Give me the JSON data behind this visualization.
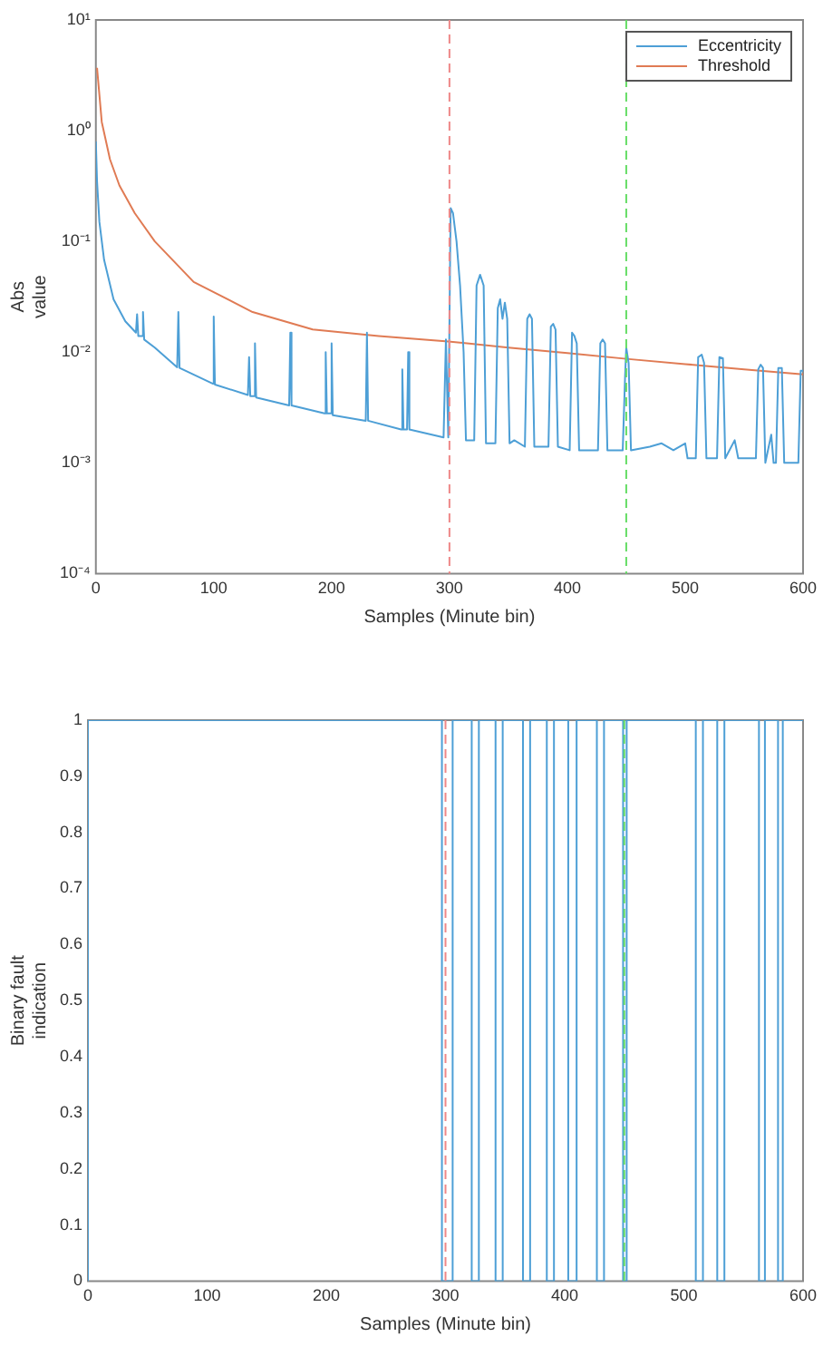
{
  "chart_data": [
    {
      "type": "line",
      "xlabel": "Samples (Minute bin)",
      "ylabel": "Abs value",
      "log": "y",
      "grid": false,
      "legend": "top right",
      "marker": "none",
      "xlim": [
        0,
        600
      ],
      "xticks": [
        0,
        100,
        200,
        300,
        400,
        500,
        600
      ],
      "ylim": [
        0.0001,
        10
      ],
      "yticks": [
        {
          "value": 0.0001,
          "label": "10⁻⁴"
        },
        {
          "value": 0.001,
          "label": "10⁻³"
        },
        {
          "value": 0.01,
          "label": "10⁻²"
        },
        {
          "value": 0.1,
          "label": "10⁻¹"
        },
        {
          "value": 1,
          "label": "10⁰"
        },
        {
          "value": 10,
          "label": "10¹"
        }
      ],
      "series": [
        {
          "name": "Eccentricity",
          "color": "#4d9fd6",
          "x": [
            0,
            1,
            3,
            7,
            15,
            25,
            34,
            35,
            36,
            39,
            40,
            41,
            50,
            69,
            70,
            71,
            99,
            100,
            101,
            129,
            130,
            131,
            134,
            135,
            136,
            164,
            165,
            166,
            194,
            195,
            196,
            199,
            200,
            201,
            229,
            230,
            231,
            259,
            260,
            261,
            264,
            265,
            266,
            295,
            297,
            299,
            301,
            303,
            306,
            309,
            312,
            314,
            321,
            323,
            326,
            329,
            331,
            339,
            341,
            343,
            345,
            347,
            349,
            351,
            355,
            364,
            366,
            368,
            370,
            372,
            384,
            386,
            388,
            390,
            392,
            402,
            404,
            406,
            408,
            410,
            426,
            428,
            430,
            432,
            434,
            447,
            449,
            450,
            452,
            454,
            470,
            480,
            490,
            500,
            502,
            509,
            511,
            514,
            516,
            518,
            527,
            529,
            532,
            534,
            542,
            545,
            560,
            562,
            564,
            566,
            568,
            573,
            575,
            577,
            579,
            582,
            584,
            596,
            598,
            600
          ],
          "values": [
            0.8,
            0.35,
            0.15,
            0.068,
            0.03,
            0.019,
            0.015,
            0.022,
            0.014,
            0.014,
            0.023,
            0.013,
            0.011,
            0.0073,
            0.023,
            0.0072,
            0.0052,
            0.021,
            0.0051,
            0.0041,
            0.009,
            0.004,
            0.004,
            0.012,
            0.0039,
            0.0033,
            0.015,
            0.0033,
            0.0028,
            0.01,
            0.0028,
            0.0028,
            0.012,
            0.0027,
            0.0024,
            0.015,
            0.0024,
            0.002,
            0.007,
            0.002,
            0.002,
            0.01,
            0.002,
            0.0017,
            0.013,
            0.0017,
            0.2,
            0.18,
            0.1,
            0.04,
            0.01,
            0.0016,
            0.0016,
            0.04,
            0.05,
            0.04,
            0.0015,
            0.0015,
            0.025,
            0.03,
            0.02,
            0.028,
            0.02,
            0.0015,
            0.0016,
            0.0014,
            0.02,
            0.022,
            0.02,
            0.0014,
            0.0014,
            0.017,
            0.018,
            0.016,
            0.0014,
            0.0013,
            0.015,
            0.014,
            0.012,
            0.0013,
            0.0013,
            0.012,
            0.013,
            0.012,
            0.0013,
            0.0013,
            0.006,
            0.011,
            0.008,
            0.0013,
            0.0014,
            0.0015,
            0.0013,
            0.0015,
            0.0011,
            0.0011,
            0.009,
            0.0095,
            0.008,
            0.0011,
            0.0011,
            0.009,
            0.0088,
            0.0011,
            0.0016,
            0.0011,
            0.0011,
            0.007,
            0.0077,
            0.0072,
            0.001,
            0.0018,
            0.001,
            0.001,
            0.0072,
            0.0072,
            0.001,
            0.001,
            0.0068,
            0.0068
          ]
        },
        {
          "name": "Threshold",
          "color": "#e07b54",
          "x": [
            1,
            5,
            12,
            20,
            33,
            50,
            83,
            133,
            184,
            240,
            299,
            350,
            400,
            450,
            500,
            550,
            600
          ],
          "values": [
            3.7,
            1.2,
            0.55,
            0.32,
            0.18,
            0.1,
            0.043,
            0.023,
            0.016,
            0.014,
            0.0125,
            0.011,
            0.0098,
            0.0087,
            0.0078,
            0.007,
            0.0063
          ]
        }
      ],
      "ref_lines": [
        {
          "axis": "x",
          "value": 300,
          "color": "#ee8888",
          "line_style": "dashed"
        },
        {
          "axis": "x",
          "value": 450,
          "color": "#66dd66",
          "line_style": "dashed"
        }
      ]
    },
    {
      "type": "step",
      "xlabel": "Samples (Minute bin)",
      "ylabel": "Binary fault indication",
      "grid": false,
      "marker": "none",
      "xlim": [
        0,
        600
      ],
      "xticks": [
        0,
        100,
        200,
        300,
        400,
        500,
        600
      ],
      "ylim": [
        0,
        1
      ],
      "yticks": [
        0,
        0.1,
        0.2,
        0.3,
        0.4,
        0.5,
        0.6,
        0.7,
        0.8,
        0.9,
        1
      ],
      "series": [
        {
          "color": "#4d9fd6",
          "x": [
            0,
            297,
            306,
            322,
            328,
            342,
            348,
            365,
            371,
            385,
            391,
            403,
            410,
            427,
            433,
            449,
            452,
            510,
            516,
            528,
            534,
            563,
            568,
            579,
            583,
            596,
            600
          ],
          "values": [
            0,
            1,
            0,
            1,
            0,
            1,
            0,
            1,
            0,
            1,
            0,
            1,
            0,
            1,
            0,
            1,
            0,
            1,
            0,
            1,
            0,
            1,
            0,
            1,
            0,
            1,
            1
          ]
        }
      ],
      "ref_lines": [
        {
          "axis": "x",
          "value": 300,
          "color": "#ee8888",
          "line_style": "dashed"
        },
        {
          "axis": "x",
          "value": 450,
          "color": "#66dd66",
          "line_style": "dashed"
        }
      ]
    }
  ]
}
